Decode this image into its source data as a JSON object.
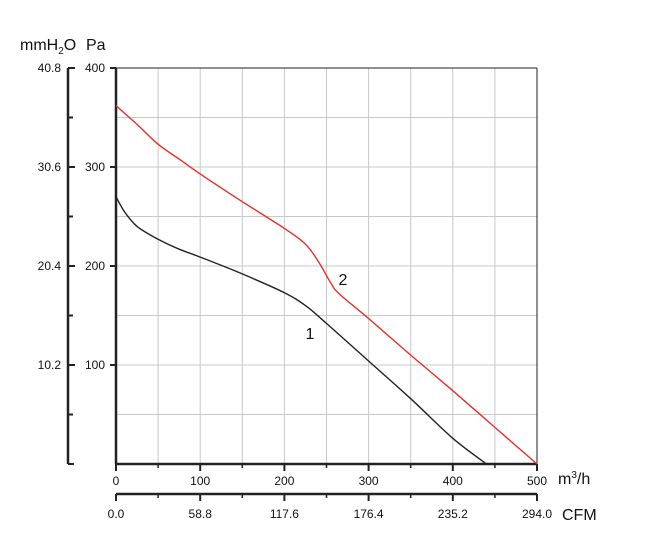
{
  "chart_data": {
    "type": "line",
    "units": {
      "left_outer": "mmH₂O",
      "left_inner": "Pa",
      "bottom_primary": "m³/h",
      "bottom_secondary": "CFM"
    },
    "x_ticks": [
      "0",
      "100",
      "200",
      "300",
      "400",
      "500"
    ],
    "cfm_ticks": [
      "0.0",
      "58.8",
      "117.6",
      "176.4",
      "235.2",
      "294.0"
    ],
    "pa_ticks": [
      "100",
      "200",
      "300",
      "400"
    ],
    "mmh2o_ticks": [
      "10.2",
      "20.4",
      "30.6",
      "40.8"
    ],
    "xlim": [
      0,
      500
    ],
    "ylim": [
      0,
      400
    ],
    "grid": true,
    "series": [
      {
        "name": "1",
        "color": "#222222",
        "x": [
          0,
          10,
          25,
          50,
          75,
          100,
          150,
          200,
          225,
          250,
          300,
          350,
          400,
          440
        ],
        "y": [
          270,
          255,
          240,
          227,
          217,
          209,
          192,
          173,
          160,
          142,
          104,
          66,
          26,
          0
        ]
      },
      {
        "name": "2",
        "color": "#e0302a",
        "x": [
          0,
          25,
          50,
          75,
          100,
          150,
          200,
          225,
          240,
          255,
          265,
          300,
          350,
          400,
          450,
          500
        ],
        "y": [
          362,
          343,
          323,
          308,
          293,
          265,
          238,
          222,
          205,
          183,
          172,
          147,
          110,
          74,
          37,
          0
        ]
      }
    ]
  }
}
